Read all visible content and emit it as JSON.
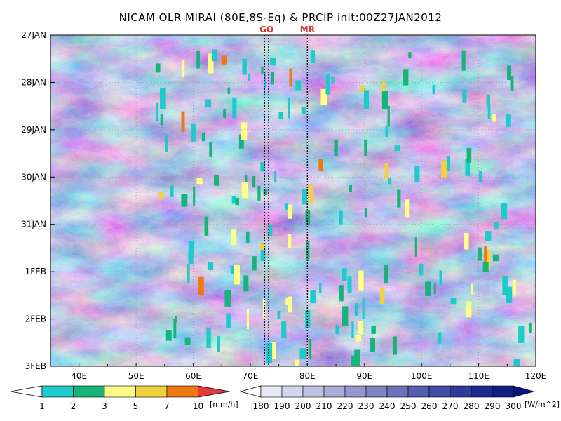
{
  "chart_data": {
    "type": "heatmap",
    "title": "NICAM OLR MIRAI (80E,8S-Eq) & PRCIP init:00Z27JAN2012",
    "x_axis": {
      "range": [
        35,
        120
      ],
      "ticks": [
        {
          "value": 40,
          "label": "40E"
        },
        {
          "value": 50,
          "label": "50E"
        },
        {
          "value": 60,
          "label": "60E"
        },
        {
          "value": 70,
          "label": "70E"
        },
        {
          "value": 80,
          "label": "80E"
        },
        {
          "value": 90,
          "label": "90E"
        },
        {
          "value": 100,
          "label": "100E"
        },
        {
          "value": 110,
          "label": "110E"
        },
        {
          "value": 120,
          "label": "120E"
        }
      ]
    },
    "y_axis": {
      "range": [
        "27JAN",
        "3FEB"
      ],
      "ticks": [
        {
          "value": 0,
          "label": "27JAN"
        },
        {
          "value": 1,
          "label": "28JAN"
        },
        {
          "value": 2,
          "label": "29JAN"
        },
        {
          "value": 3,
          "label": "30JAN"
        },
        {
          "value": 4,
          "label": "31JAN"
        },
        {
          "value": 5,
          "label": "1FEB"
        },
        {
          "value": 6,
          "label": "2FEB"
        },
        {
          "value": 7,
          "label": "3FEB"
        }
      ]
    },
    "grid": true,
    "markers": [
      {
        "label": "GO",
        "values": [
          72.5,
          73.2
        ]
      },
      {
        "label": "MR",
        "values": [
          80.0
        ]
      }
    ],
    "precip_colorbar": {
      "unit": "[mm/h]",
      "levels": [
        "1",
        "2",
        "3",
        "5",
        "7",
        "10"
      ],
      "colors": [
        "#ffffff",
        "#1ecbcb",
        "#14b47a",
        "#ffff88",
        "#f0d23c",
        "#f07814",
        "#e03c3c"
      ]
    },
    "olr_colorbar": {
      "unit": "[W/m^2]",
      "levels": [
        "180",
        "190",
        "200",
        "210",
        "220",
        "230",
        "240",
        "250",
        "260",
        "270",
        "280",
        "290",
        "300"
      ],
      "colors": [
        "#ffffff",
        "#e8e8f4",
        "#d4d6ec",
        "#bfc2e2",
        "#a9aed8",
        "#9499cd",
        "#7f85c2",
        "#6b72b8",
        "#565fad",
        "#434ca3",
        "#313a98",
        "#1f2a8e",
        "#121e82",
        "#08147a"
      ]
    }
  }
}
